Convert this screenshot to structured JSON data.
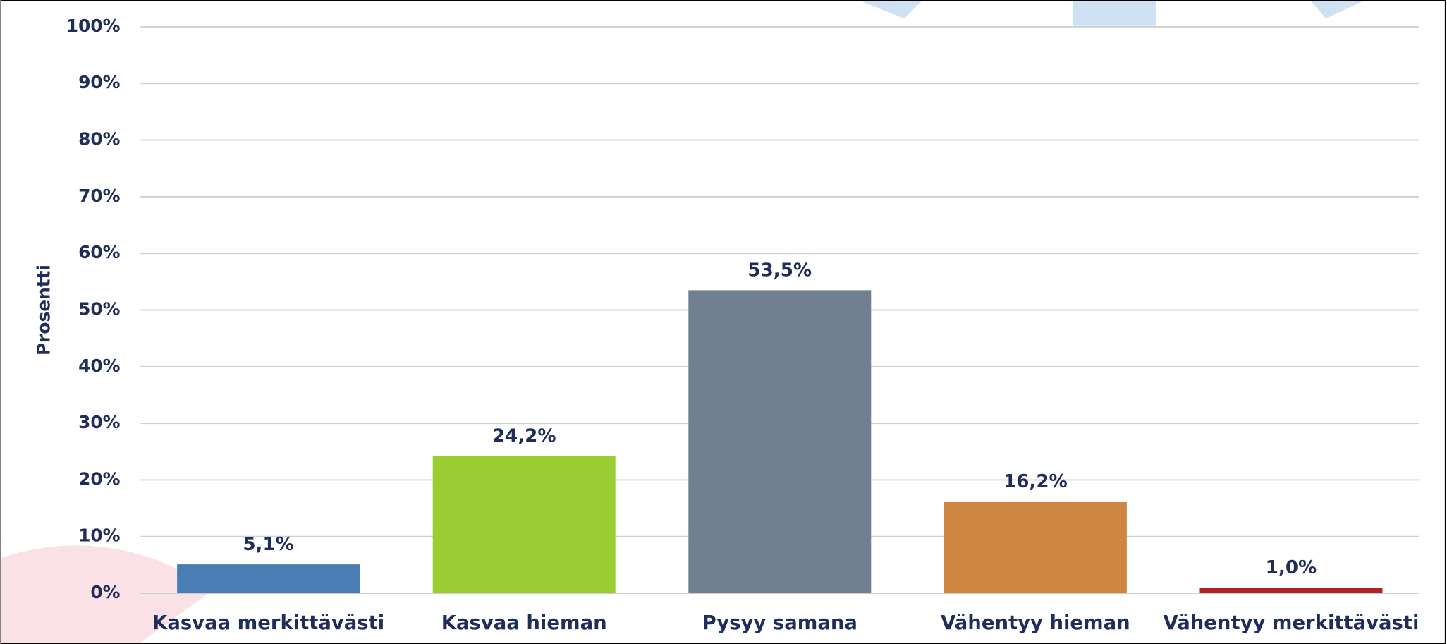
{
  "chart_data": {
    "type": "bar",
    "y_axis_label": "Prosentti",
    "categories": [
      "Kasvaa merkittävästi",
      "Kasvaa hieman",
      "Pysyy samana",
      "Vähentyy hieman",
      "Vähentyy merkittävästi"
    ],
    "values": [
      5.1,
      24.2,
      53.5,
      16.2,
      1.0
    ],
    "value_labels": [
      "5,1%",
      "24,2%",
      "53,5%",
      "16,2%",
      "1,0%"
    ],
    "colors": [
      "#4a7db4",
      "#9acd32",
      "#708090",
      "#cd853f",
      "#b22222"
    ],
    "ylim": [
      0,
      100
    ],
    "yticks": [
      {
        "value": 0,
        "label": "0%"
      },
      {
        "value": 10,
        "label": "10%"
      },
      {
        "value": 20,
        "label": "20%"
      },
      {
        "value": 30,
        "label": "30%"
      },
      {
        "value": 40,
        "label": "40%"
      },
      {
        "value": 50,
        "label": "50%"
      },
      {
        "value": 60,
        "label": "60%"
      },
      {
        "value": 70,
        "label": "70%"
      },
      {
        "value": 80,
        "label": "80%"
      },
      {
        "value": 90,
        "label": "90%"
      },
      {
        "value": 100,
        "label": "100%"
      }
    ],
    "grid": true
  }
}
